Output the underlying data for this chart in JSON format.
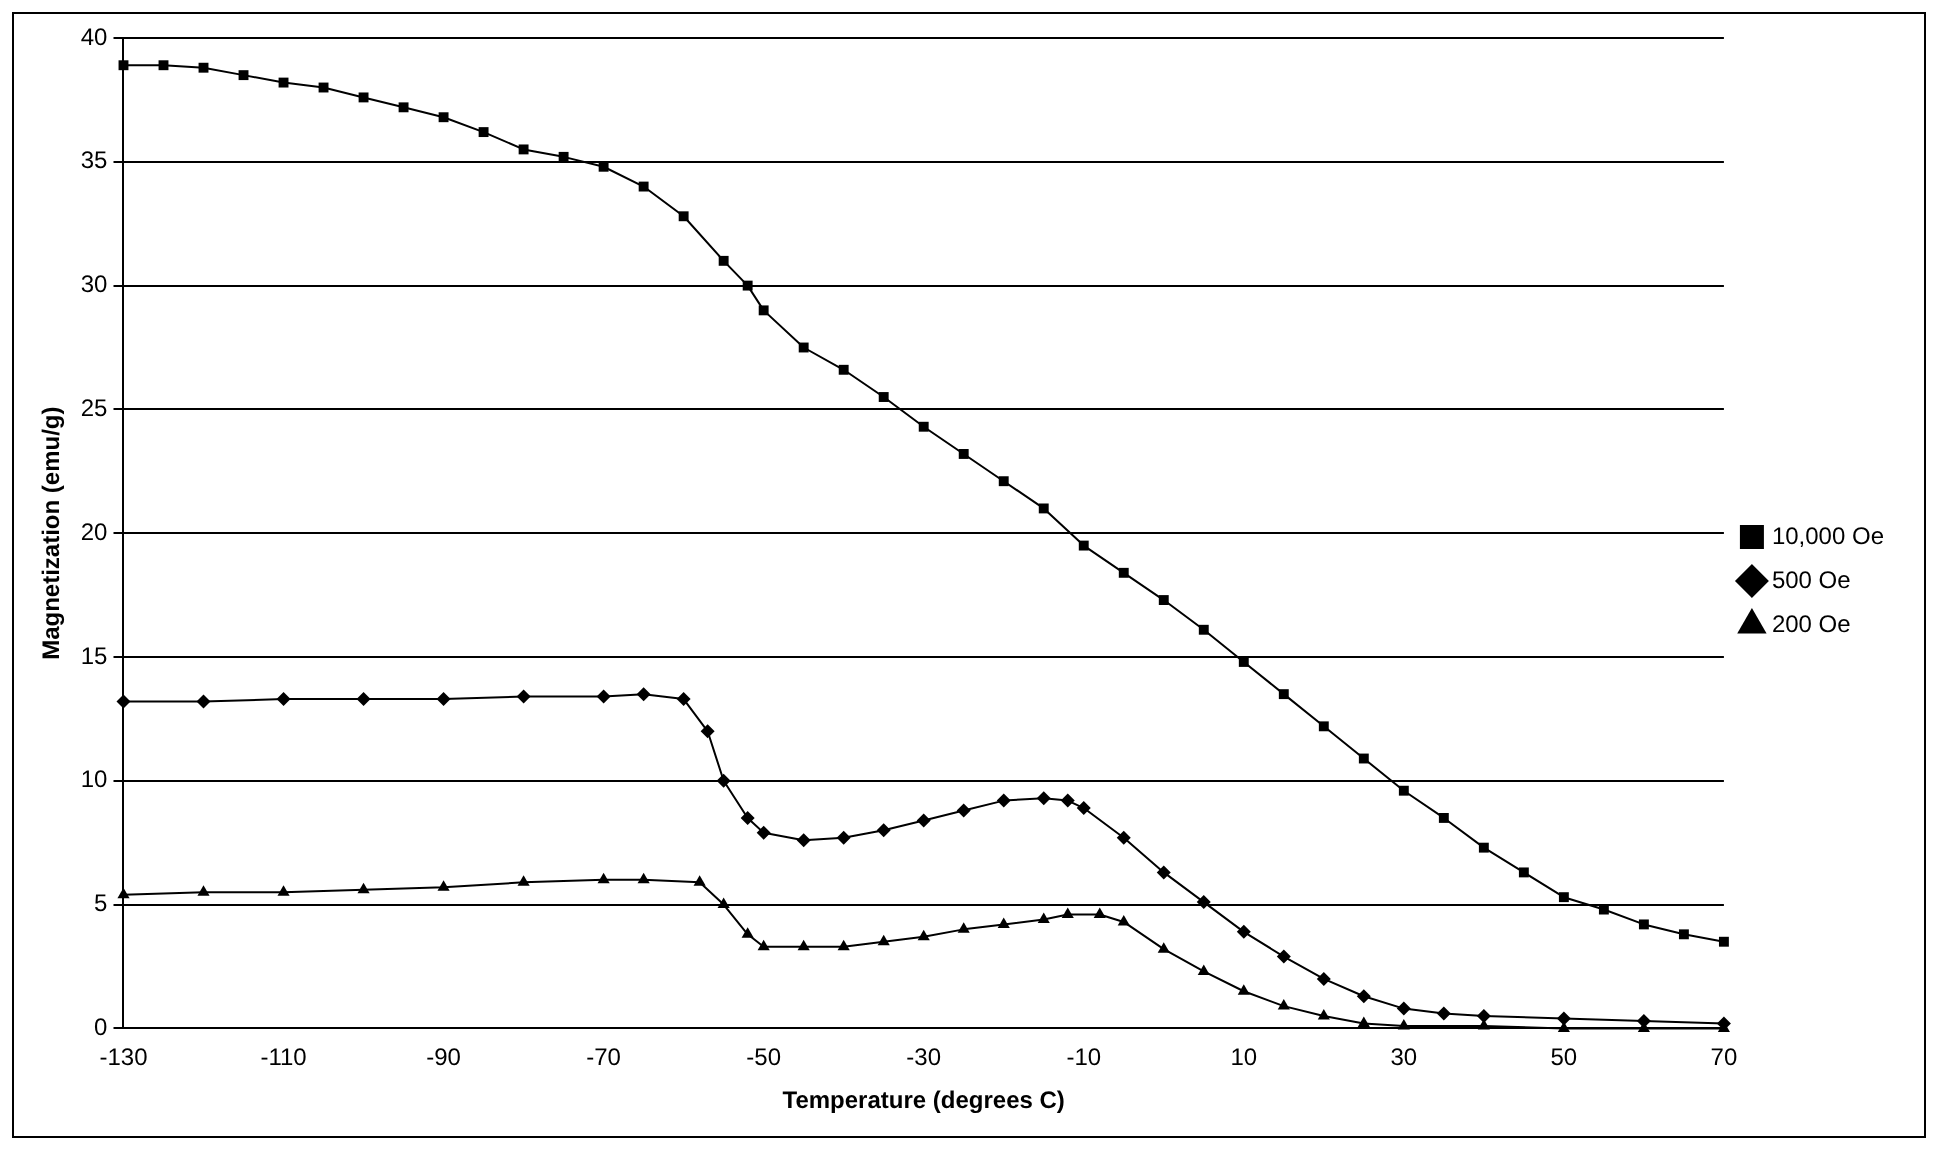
{
  "chart_data": {
    "type": "line",
    "xlabel": "Temperature (degrees C)",
    "ylabel": "Magnetization (emu/g)",
    "xlim": [
      -130,
      70
    ],
    "xticks": [
      -130,
      -110,
      -90,
      -70,
      -50,
      -30,
      -10,
      10,
      30,
      50,
      70
    ],
    "ylim": [
      0,
      40
    ],
    "yticks": [
      0,
      5,
      10,
      15,
      20,
      25,
      30,
      35,
      40
    ],
    "grid": "y",
    "legend": "right",
    "series": [
      {
        "name": "10,000 Oe",
        "color": "#000000",
        "marker": "square",
        "x": [
          -130,
          -125,
          -120,
          -115,
          -110,
          -105,
          -100,
          -95,
          -90,
          -85,
          -80,
          -75,
          -70,
          -65,
          -60,
          -55,
          -52,
          -50,
          -45,
          -40,
          -35,
          -30,
          -25,
          -20,
          -15,
          -10,
          -5,
          0,
          5,
          10,
          15,
          20,
          25,
          30,
          35,
          40,
          45,
          50,
          55,
          60,
          65,
          70
        ],
        "values": [
          38.9,
          38.9,
          38.8,
          38.5,
          38.2,
          38.0,
          37.6,
          37.2,
          36.8,
          36.2,
          35.5,
          35.2,
          34.8,
          34.0,
          32.8,
          31.0,
          30.0,
          29.0,
          27.5,
          26.6,
          25.5,
          24.3,
          23.2,
          22.1,
          21.0,
          19.5,
          18.4,
          17.3,
          16.1,
          14.8,
          13.5,
          12.2,
          10.9,
          9.6,
          8.5,
          7.3,
          6.3,
          5.3,
          4.8,
          4.2,
          3.8,
          3.5
        ]
      },
      {
        "name": "500 Oe",
        "color": "#000000",
        "marker": "diamond",
        "x": [
          -130,
          -120,
          -110,
          -100,
          -90,
          -80,
          -70,
          -65,
          -60,
          -57,
          -55,
          -52,
          -50,
          -45,
          -40,
          -35,
          -30,
          -25,
          -20,
          -15,
          -12,
          -10,
          -5,
          0,
          5,
          10,
          15,
          20,
          25,
          30,
          35,
          40,
          50,
          60,
          70
        ],
        "values": [
          13.2,
          13.2,
          13.3,
          13.3,
          13.3,
          13.4,
          13.4,
          13.5,
          13.3,
          12.0,
          10.0,
          8.5,
          7.9,
          7.6,
          7.7,
          8.0,
          8.4,
          8.8,
          9.2,
          9.3,
          9.2,
          8.9,
          7.7,
          6.3,
          5.1,
          3.9,
          2.9,
          2.0,
          1.3,
          0.8,
          0.6,
          0.5,
          0.4,
          0.3,
          0.2
        ]
      },
      {
        "name": "200 Oe",
        "color": "#000000",
        "marker": "triangle",
        "x": [
          -130,
          -120,
          -110,
          -100,
          -90,
          -80,
          -70,
          -65,
          -58,
          -55,
          -52,
          -50,
          -45,
          -40,
          -35,
          -30,
          -25,
          -20,
          -15,
          -12,
          -8,
          -5,
          0,
          5,
          10,
          15,
          20,
          25,
          30,
          40,
          50,
          60,
          70
        ],
        "values": [
          5.4,
          5.5,
          5.5,
          5.6,
          5.7,
          5.9,
          6.0,
          6.0,
          5.9,
          5.0,
          3.8,
          3.3,
          3.3,
          3.3,
          3.5,
          3.7,
          4.0,
          4.2,
          4.4,
          4.6,
          4.6,
          4.3,
          3.2,
          2.3,
          1.5,
          0.9,
          0.5,
          0.2,
          0.1,
          0.1,
          0.0,
          0.0,
          0.0
        ]
      }
    ]
  }
}
